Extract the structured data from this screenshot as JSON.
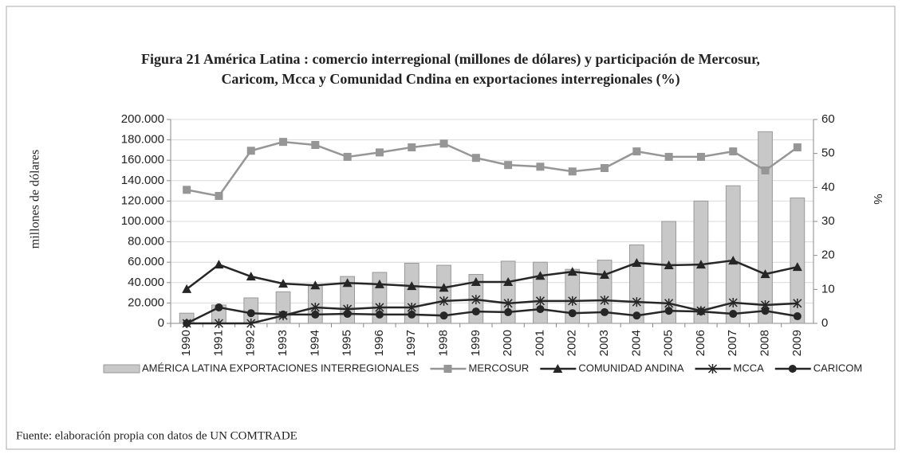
{
  "chart_data": {
    "type": "bar",
    "title": [
      "Figura 21 América Latina : comercio interregional  (millones de dólares) y participación de Mercosur,",
      "Caricom, Mcca y Comunidad Cndina en exportaciones interregionales (%)"
    ],
    "y_label": "millones de dólares",
    "y2_label": "%",
    "source": "Fuente: elaboración propia con datos de UN COMTRADE",
    "categories": [
      "1990",
      "1991",
      "1992",
      "1993",
      "1994",
      "1995",
      "1996",
      "1997",
      "1998",
      "1999",
      "2000",
      "2001",
      "2002",
      "2003",
      "2004",
      "2005",
      "2006",
      "2007",
      "2008",
      "2009"
    ],
    "ylim": [
      0,
      200000
    ],
    "yticks": [
      0,
      {
        "value": 20000,
        "label": "20.000"
      },
      {
        "value": 40000,
        "label": "40.000"
      },
      {
        "value": 60000,
        "label": "60.000"
      },
      {
        "value": 80000,
        "label": "80.000"
      },
      {
        "value": 100000,
        "label": "100.000"
      },
      {
        "value": 120000,
        "label": "120.000"
      },
      {
        "value": 140000,
        "label": "140.000"
      },
      {
        "value": 160000,
        "label": "160.000"
      },
      {
        "value": 180000,
        "label": "180.000"
      },
      {
        "value": 200000,
        "label": "200.000"
      }
    ],
    "y2lim": [
      0,
      60
    ],
    "y2ticks": [
      0,
      10,
      20,
      30,
      40,
      50,
      60
    ],
    "grid": true,
    "legend": "bottom",
    "series": [
      {
        "name": "AMÉRICA LATINA EXPORTACIONES INTERREGIONALES",
        "type": "bar",
        "color": "#c8c8c8",
        "values": [
          10000,
          18000,
          25000,
          31000,
          38000,
          46000,
          50000,
          59000,
          57000,
          48000,
          61000,
          60000,
          53000,
          62000,
          77000,
          100000,
          120000,
          135000,
          188000,
          123000
        ]
      },
      {
        "name": "MERCOSUR",
        "type": "line",
        "axis": "y2",
        "marker": "square",
        "color": "#969696",
        "values": [
          39.3,
          37.5,
          50.8,
          53.4,
          52.5,
          49,
          50.3,
          51.8,
          52.9,
          48.7,
          46.6,
          46.1,
          44.7,
          45.7,
          50.6,
          49,
          49,
          50.6,
          45,
          51.8
        ]
      },
      {
        "name": "COMUNIDAD ANDINA",
        "type": "line",
        "axis": "y2",
        "marker": "triangle",
        "color": "#262626",
        "values": [
          10.1,
          17.3,
          13.8,
          11.7,
          11.2,
          11.9,
          11.5,
          11,
          10.5,
          12.2,
          12.2,
          14,
          15.2,
          14.3,
          17.8,
          17.1,
          17.3,
          18.5,
          14.5,
          16.6
        ]
      },
      {
        "name": "MCCA",
        "type": "line",
        "axis": "y2",
        "marker": "asterisk",
        "color": "#262626",
        "values": [
          0,
          0,
          0,
          2.3,
          4.7,
          4.2,
          4.7,
          4.7,
          6.6,
          7,
          5.9,
          6.6,
          6.6,
          6.8,
          6.3,
          5.9,
          3.7,
          6.1,
          5.4,
          5.9
        ]
      },
      {
        "name": "CARICOM",
        "type": "line",
        "axis": "y2",
        "marker": "circle",
        "color": "#262626",
        "values": [
          0,
          4.7,
          3,
          2.6,
          2.6,
          2.8,
          2.6,
          2.6,
          2.3,
          3.5,
          3.3,
          4.2,
          3,
          3.3,
          2.3,
          3.7,
          3.5,
          2.8,
          3.7,
          2.1
        ]
      }
    ]
  }
}
